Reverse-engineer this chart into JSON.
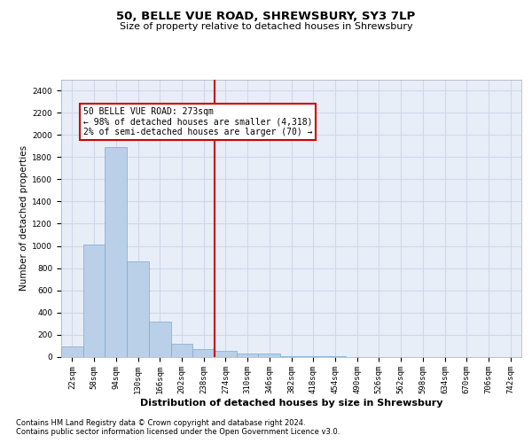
{
  "title1": "50, BELLE VUE ROAD, SHREWSBURY, SY3 7LP",
  "title2": "Size of property relative to detached houses in Shrewsbury",
  "xlabel": "Distribution of detached houses by size in Shrewsbury",
  "ylabel": "Number of detached properties",
  "bar_color": "#bad0e8",
  "bar_edge_color": "#7aaad0",
  "background_color": "#e8eef8",
  "grid_color": "#d0d8e8",
  "categories": [
    "22sqm",
    "58sqm",
    "94sqm",
    "130sqm",
    "166sqm",
    "202sqm",
    "238sqm",
    "274sqm",
    "310sqm",
    "346sqm",
    "382sqm",
    "418sqm",
    "454sqm",
    "490sqm",
    "526sqm",
    "562sqm",
    "598sqm",
    "634sqm",
    "670sqm",
    "706sqm",
    "742sqm"
  ],
  "values": [
    90,
    1010,
    1890,
    860,
    315,
    120,
    65,
    50,
    30,
    25,
    5,
    2,
    1,
    0,
    0,
    0,
    0,
    0,
    0,
    0,
    0
  ],
  "vline_x": 7.0,
  "vline_color": "#cc0000",
  "annotation_line1": "50 BELLE VUE ROAD: 273sqm",
  "annotation_line2": "← 98% of detached houses are smaller (4,318)",
  "annotation_line3": "2% of semi-detached houses are larger (70) →",
  "annotation_box_color": "#ffffff",
  "annotation_box_edge": "#cc0000",
  "ylim": [
    0,
    2500
  ],
  "yticks": [
    0,
    200,
    400,
    600,
    800,
    1000,
    1200,
    1400,
    1600,
    1800,
    2000,
    2200,
    2400
  ],
  "footnote1": "Contains HM Land Registry data © Crown copyright and database right 2024.",
  "footnote2": "Contains public sector information licensed under the Open Government Licence v3.0.",
  "title1_fontsize": 9.5,
  "title2_fontsize": 8,
  "ylabel_fontsize": 7.5,
  "xlabel_fontsize": 8,
  "tick_fontsize": 6.5,
  "annot_fontsize": 7,
  "footnote_fontsize": 6
}
